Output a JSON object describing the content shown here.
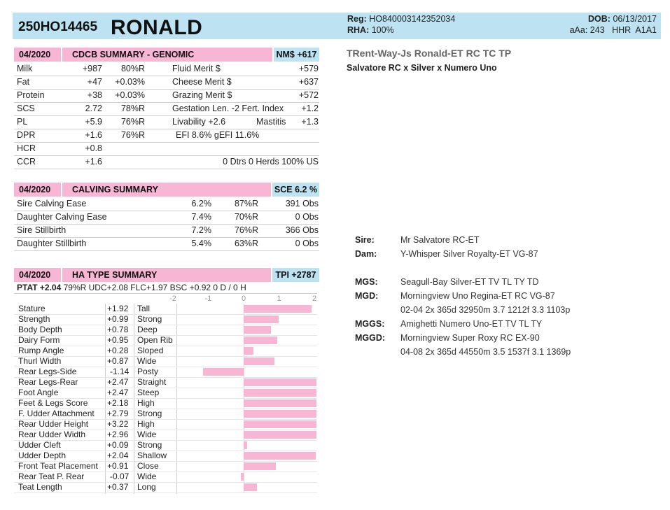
{
  "header": {
    "reg_number": "250HO14465",
    "name": "RONALD",
    "reg_label": "Reg:",
    "reg_value": "HO840003142352034",
    "rha_label": "RHA:",
    "rha_value": "100%",
    "dob_label": "DOB:",
    "dob_value": "06/13/2017",
    "aaa_line": "aAa: 243   HHR  A1A1"
  },
  "full_name": "TRent-Way-Js Ronald-ET  RC TC TP",
  "pedigree_line": "Salvatore RC x Silver x Numero Uno",
  "cdcb": {
    "date": "04/2020",
    "title": "CDCB SUMMARY - GENOMIC",
    "badge": "NM$ +617",
    "rows": [
      {
        "label": "Milk",
        "value": "+987",
        "rel": "80%R",
        "label2": "Fluid Merit $",
        "value2": "+579"
      },
      {
        "label": "Fat",
        "value": "+47",
        "rel": "+0.03%",
        "label2": "Cheese Merit $",
        "value2": "+637"
      },
      {
        "label": "Protein",
        "value": "+38",
        "rel": "+0.03%",
        "label2": "Grazing Merit $",
        "value2": "+572"
      },
      {
        "label": "SCS",
        "value": "2.72",
        "rel": "78%R",
        "label2": "Gestation Len. -2  Fert. Index",
        "value2": "+1.2"
      },
      {
        "label": "PL",
        "value": "+5.9",
        "rel": "76%R",
        "label2": "Livability   +2.6",
        "mid2": "Mastitis",
        "value2": "+1.3"
      },
      {
        "label": "DPR",
        "value": "+1.6",
        "rel": "76%R",
        "label2": "EFI  8.6%  gEFI  11.6%",
        "value2": ""
      },
      {
        "label": "HCR",
        "value": "+0.8",
        "rel": "",
        "label2": "",
        "value2": ""
      },
      {
        "label": "CCR",
        "value": "+1.6",
        "rel": "",
        "label2": "",
        "value2": "0 Dtrs   0 Herds   100% US"
      }
    ]
  },
  "calving": {
    "date": "04/2020",
    "title": "CALVING SUMMARY",
    "badge": "SCE 6.2 %",
    "rows": [
      {
        "label": "Sire Calving Ease",
        "pct": "6.2%",
        "rel": "87%R",
        "obs": "391 Obs"
      },
      {
        "label": "Daughter Calving Ease",
        "pct": "7.4%",
        "rel": "70%R",
        "obs": "0 Obs"
      },
      {
        "label": "Sire Stillbirth",
        "pct": "7.2%",
        "rel": "76%R",
        "obs": "366 Obs"
      },
      {
        "label": "Daughter Stillbirth",
        "pct": "5.4%",
        "rel": "63%R",
        "obs": "0 Obs"
      }
    ]
  },
  "type": {
    "date": "04/2020",
    "title": "HA TYPE SUMMARY",
    "badge": "TPI +2787",
    "ptat_label": "PTAT +2.04",
    "ptat_rest": "79%R  UDC+2.08  FLC+1.97  BSC +0.92  0 D /  0 H",
    "scale_labels": [
      "-2",
      "-1",
      "0",
      "1",
      "2"
    ]
  },
  "chart_data": {
    "type": "bar",
    "orientation": "horizontal",
    "xlim": [
      -2,
      2
    ],
    "categories": [
      "Stature",
      "Strength",
      "Body Depth",
      "Dairy Form",
      "Rump Angle",
      "Thurl Width",
      "Rear Legs-Side",
      "Rear Legs-Rear",
      "Foot Angle",
      "Feet & Legs Score",
      "F. Udder Attachment",
      "Rear Udder Height",
      "Rear Udder Width",
      "Udder Cleft",
      "Udder Depth",
      "Front Teat Placement",
      "Rear Teat P. Rear",
      "Teat Length"
    ],
    "values": [
      1.92,
      0.99,
      0.78,
      0.95,
      0.28,
      0.87,
      -1.14,
      2.47,
      2.47,
      2.18,
      2.79,
      3.22,
      2.96,
      0.09,
      2.04,
      0.91,
      -0.07,
      0.37
    ],
    "value_labels": [
      "+1.92",
      "+0.99",
      "+0.78",
      "+0.95",
      "+0.28",
      "+0.87",
      "-1.14",
      "+2.47",
      "+2.47",
      "+2.18",
      "+2.79",
      "+3.22",
      "+2.96",
      "+0.09",
      "+2.04",
      "+0.91",
      "-0.07",
      "+0.37"
    ],
    "descriptors": [
      "Tall",
      "Strong",
      "Deep",
      "Open Rib",
      "Sloped",
      "Wide",
      "Posty",
      "Straight",
      "Steep",
      "High",
      "Strong",
      "High",
      "Wide",
      "Strong",
      "Shallow",
      "Close",
      "Wide",
      "Long"
    ],
    "bar_color": "#f7b7d4"
  },
  "pedigree": [
    {
      "label": "Sire:",
      "value": "Mr Salvatore RC-ET"
    },
    {
      "label": "Dam:",
      "value": "Y-Whisper Silver Royalty-ET VG-87"
    },
    {
      "label": "MGS:",
      "value": "Seagull-Bay Silver-ET TV TL TY TD"
    },
    {
      "label": "MGD:",
      "value": "Morningview Uno Regina-ET RC VG-87",
      "extra": "02-04 2x 365d 32950m 3.7 1212f 3.3 1103p"
    },
    {
      "label": "MGGS:",
      "value": "Amighetti Numero Uno-ET TV TL TY"
    },
    {
      "label": "MGGD:",
      "value": "Morningview Super Roxy RC EX-90",
      "extra": "04-08 2x 365d 44550m 3.5 1537f 3.1 1369p"
    }
  ],
  "colors": {
    "pink": "#f7b7d4",
    "blue": "#bde3f2"
  }
}
